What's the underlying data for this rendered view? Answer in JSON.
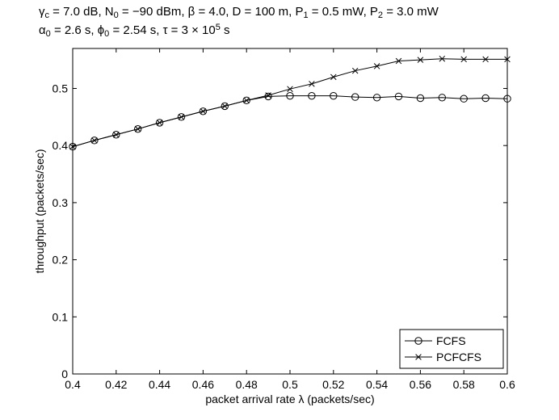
{
  "chart_data": {
    "type": "line",
    "title_lines": [
      [
        {
          "t": "γ"
        },
        {
          "t": "c",
          "sub": true
        },
        {
          "t": " = 7.0 dB, N"
        },
        {
          "t": "0",
          "sub": true
        },
        {
          "t": " = −90 dBm, β = 4.0, D = 100 m, P"
        },
        {
          "t": "1",
          "sub": true
        },
        {
          "t": " = 0.5 mW, P"
        },
        {
          "t": "2",
          "sub": true
        },
        {
          "t": " = 3.0 mW"
        }
      ],
      [
        {
          "t": "α"
        },
        {
          "t": "0",
          "sub": true
        },
        {
          "t": " = 2.6 s, ϕ"
        },
        {
          "t": "0",
          "sub": true
        },
        {
          "t": " = 2.54 s, τ  = 3 × 10"
        },
        {
          "t": "5",
          "sup": true
        },
        {
          "t": " s"
        }
      ]
    ],
    "xlabel": "packet arrival rate λ (packets/sec)",
    "ylabel": "throughput (packets/sec)",
    "xlim": [
      0.4,
      0.6
    ],
    "ylim": [
      0,
      0.57
    ],
    "xticks": [
      0.4,
      0.42,
      0.44,
      0.46,
      0.48,
      0.5,
      0.52,
      0.54,
      0.56,
      0.58,
      0.6
    ],
    "xtick_labels": [
      "0.4",
      "0.42",
      "0.44",
      "0.46",
      "0.48",
      "0.5",
      "0.52",
      "0.54",
      "0.56",
      "0.58",
      "0.6"
    ],
    "yticks": [
      0,
      0.1,
      0.2,
      0.3,
      0.4,
      0.5
    ],
    "ytick_labels": [
      "0",
      "0.1",
      "0.2",
      "0.3",
      "0.4",
      "0.5"
    ],
    "grid": false,
    "legend_position": "bottom-right",
    "series": [
      {
        "name": "FCFS",
        "marker": "circle",
        "x": [
          0.4,
          0.41,
          0.42,
          0.43,
          0.44,
          0.45,
          0.46,
          0.47,
          0.48,
          0.49,
          0.5,
          0.51,
          0.52,
          0.53,
          0.54,
          0.55,
          0.56,
          0.57,
          0.58,
          0.59,
          0.6
        ],
        "y": [
          0.398,
          0.409,
          0.419,
          0.429,
          0.44,
          0.45,
          0.46,
          0.469,
          0.479,
          0.486,
          0.487,
          0.487,
          0.487,
          0.485,
          0.484,
          0.486,
          0.483,
          0.484,
          0.482,
          0.483,
          0.482
        ]
      },
      {
        "name": "PCFCFS",
        "marker": "x",
        "x": [
          0.4,
          0.41,
          0.42,
          0.43,
          0.44,
          0.45,
          0.46,
          0.47,
          0.48,
          0.49,
          0.5,
          0.51,
          0.52,
          0.53,
          0.54,
          0.55,
          0.56,
          0.57,
          0.58,
          0.59,
          0.6
        ],
        "y": [
          0.398,
          0.409,
          0.419,
          0.429,
          0.44,
          0.45,
          0.46,
          0.469,
          0.479,
          0.488,
          0.499,
          0.508,
          0.52,
          0.531,
          0.539,
          0.548,
          0.55,
          0.552,
          0.551,
          0.551,
          0.551
        ]
      }
    ]
  }
}
